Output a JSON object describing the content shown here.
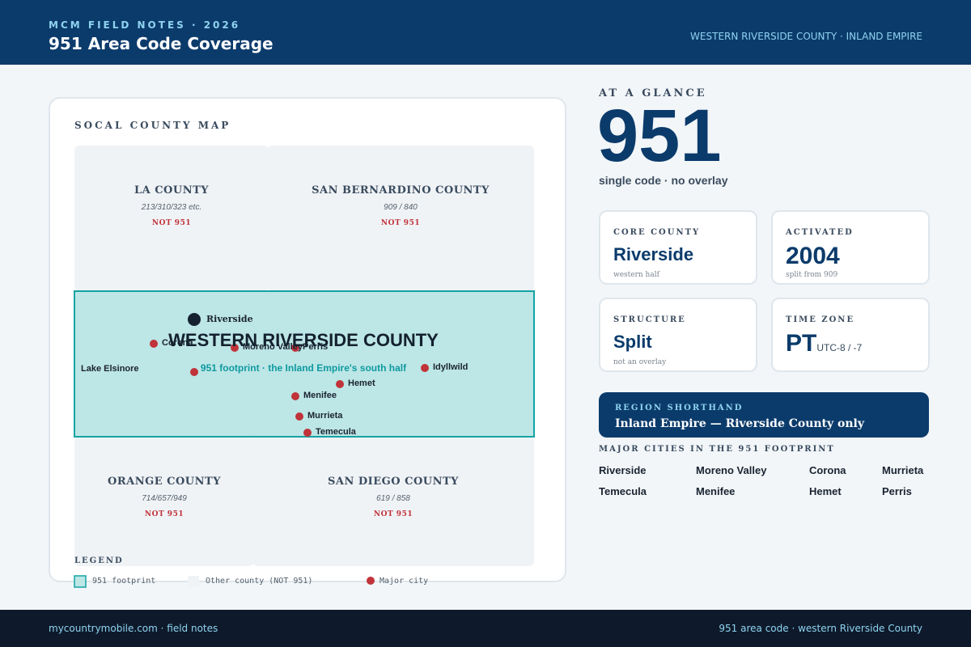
{
  "header": {
    "eyebrow": "MCM FIELD NOTES · 2026",
    "title": "951 Area Code Coverage",
    "region": "WESTERN RIVERSIDE COUNTY · INLAND EMPIRE"
  },
  "map": {
    "title": "SOCAL COUNTY MAP",
    "counties": [
      {
        "name": "LA COUNTY",
        "codes": "213/310/323 etc.",
        "status": "NOT 951"
      },
      {
        "name": "SAN BERNARDINO COUNTY",
        "codes": "909 / 840",
        "status": "NOT 951"
      },
      {
        "name": "ORANGE COUNTY",
        "codes": "714/657/949",
        "status": "NOT 951"
      },
      {
        "name": "SAN DIEGO COUNTY",
        "codes": "619 / 858",
        "status": "NOT 951"
      }
    ],
    "footprint": {
      "title": "WESTERN RIVERSIDE COUNTY",
      "subtitle": "951 footprint · the Inland Empire's south half"
    },
    "cities": {
      "riverside": "Riverside",
      "corona": "Corona",
      "moreno_valley": "Moreno Valley",
      "perris": "Perris",
      "lake_elsinore": "Lake Elsinore",
      "idyllwild": "Idyllwild",
      "hemet": "Hemet",
      "menifee": "Menifee",
      "murrieta": "Murrieta",
      "temecula": "Temecula"
    },
    "colors": {
      "footprint_fill": "#bde6e6",
      "footprint_stroke": "#14a3a3",
      "other_county": "#f0f3f6",
      "city_dot": "#c0333a",
      "anchor_dot": "#14212f"
    }
  },
  "legend": {
    "title": "LEGEND",
    "footprint": "951 footprint",
    "other": "Other county (NOT 951)",
    "city": "Major city"
  },
  "glance": {
    "label": "AT A GLANCE",
    "code": "951",
    "sub": "single code · no overlay"
  },
  "stats": {
    "core_county": {
      "label": "CORE COUNTY",
      "value": "Riverside",
      "note": "western half"
    },
    "activated": {
      "label": "ACTIVATED",
      "value": "2004",
      "note": "split from 909"
    },
    "structure": {
      "label": "STRUCTURE",
      "value": "Split",
      "note": "not an overlay"
    },
    "time_zone": {
      "label": "TIME ZONE",
      "value": "PT",
      "unit": "UTC-8 / -7"
    }
  },
  "shorthand": {
    "label": "REGION SHORTHAND",
    "value": "Inland Empire — Riverside County only"
  },
  "major_cities": {
    "label": "MAJOR CITIES IN THE 951 FOOTPRINT",
    "items": [
      "Riverside",
      "Moreno Valley",
      "Corona",
      "Murrieta",
      "Temecula",
      "Menifee",
      "Hemet",
      "Perris"
    ]
  },
  "footer": {
    "left": "mycountrymobile.com · field notes",
    "right": "951 area code · western Riverside County"
  }
}
